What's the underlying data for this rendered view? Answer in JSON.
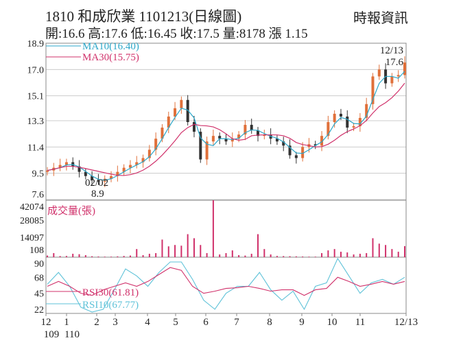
{
  "header": {
    "title": "1810  和成欣業 1101213(日線圖)",
    "source": "時報資訊",
    "quote": "開:16.6 高:17.6 低:16.45 收:17.5 量:8178 漲 1.15"
  },
  "colors": {
    "up": "#e0703a",
    "down": "#333333",
    "ma10": "#2aa6c8",
    "ma30": "#d0306a",
    "volume": "#d0306a",
    "rsi10": "#5ec2d8",
    "rsi30": "#d0306a",
    "grid": "#cccccc"
  },
  "chart_data": [
    {
      "type": "candlestick",
      "title": "",
      "price_ticks": [
        "18.9",
        "17.0",
        "15.1",
        "13.3",
        "11.4",
        "9.5",
        "7.6"
      ],
      "ylim": [
        7.6,
        18.9
      ],
      "legend": [
        {
          "name": "MA10(16.40)"
        },
        {
          "name": "MA30(15.75)"
        }
      ],
      "annotations": [
        {
          "label_date": "02/02",
          "label_value": "8.9"
        },
        {
          "label_date": "12/13",
          "label_value": "17.6"
        }
      ],
      "closes": [
        9.7,
        9.9,
        10.1,
        10.3,
        10.0,
        9.6,
        9.3,
        9.0,
        8.9,
        9.1,
        9.3,
        9.6,
        9.9,
        10.1,
        10.3,
        10.6,
        11.2,
        12.0,
        12.8,
        13.6,
        14.2,
        14.8,
        13.2,
        12.5,
        10.5,
        11.8,
        12.2,
        12.0,
        11.8,
        12.0,
        12.3,
        13.0,
        12.6,
        12.2,
        12.3,
        12.0,
        11.8,
        11.5,
        10.8,
        10.6,
        11.4,
        11.6,
        11.5,
        12.2,
        13.2,
        13.8,
        13.6,
        12.8,
        12.9,
        13.5,
        14.5,
        16.5,
        17.0,
        16.0,
        16.5,
        16.6,
        17.5
      ]
    },
    {
      "type": "bar",
      "title": "成交量(張)",
      "yticks": [
        "42074",
        "28085",
        "14097",
        "108"
      ],
      "ylim": [
        108,
        42074
      ],
      "values": [
        1200,
        3000,
        800,
        900,
        2500,
        2200,
        1500,
        700,
        500,
        400,
        400,
        600,
        900,
        1200,
        6000,
        1500,
        2500,
        3000,
        13000,
        8000,
        9000,
        8500,
        17000,
        14000,
        9000,
        3000,
        42074,
        2000,
        3000,
        5000,
        1500,
        1200,
        2500,
        17000,
        6000,
        2000,
        900,
        800,
        700,
        600,
        500,
        400,
        400,
        3000,
        5000,
        6000,
        4000,
        3500,
        2000,
        2500,
        3000,
        14000,
        10000,
        9000,
        6000,
        4000,
        8178
      ]
    },
    {
      "type": "line",
      "title": "",
      "yticks": [
        "90",
        "68",
        "45",
        "22"
      ],
      "ylim": [
        22,
        90
      ],
      "series": [
        {
          "name": "RSI30(61.81)",
          "values": [
            55,
            62,
            55,
            45,
            42,
            50,
            55,
            60,
            55,
            62,
            72,
            82,
            78,
            55,
            45,
            48,
            52,
            53,
            55,
            52,
            48,
            50,
            50,
            42,
            50,
            52,
            68,
            62,
            55,
            58,
            62,
            58,
            62
          ]
        },
        {
          "name": "RSI10(67.77)",
          "values": [
            58,
            75,
            55,
            25,
            18,
            22,
            50,
            80,
            70,
            55,
            75,
            90,
            90,
            65,
            35,
            22,
            45,
            55,
            55,
            75,
            50,
            35,
            48,
            22,
            55,
            60,
            95,
            70,
            45,
            60,
            65,
            58,
            68
          ]
        }
      ]
    }
  ],
  "x_axis": {
    "ticks": [
      {
        "label": "12",
        "sub": "109"
      },
      {
        "label": "1",
        "sub": "110"
      },
      {
        "label": "2",
        "sub": ""
      },
      {
        "label": "3",
        "sub": ""
      },
      {
        "label": "4",
        "sub": ""
      },
      {
        "label": "5",
        "sub": ""
      },
      {
        "label": "6",
        "sub": ""
      },
      {
        "label": "7",
        "sub": ""
      },
      {
        "label": "8",
        "sub": ""
      },
      {
        "label": "9",
        "sub": ""
      },
      {
        "label": "10",
        "sub": ""
      },
      {
        "label": "11",
        "sub": ""
      },
      {
        "label": "12/13",
        "sub": ""
      }
    ]
  }
}
